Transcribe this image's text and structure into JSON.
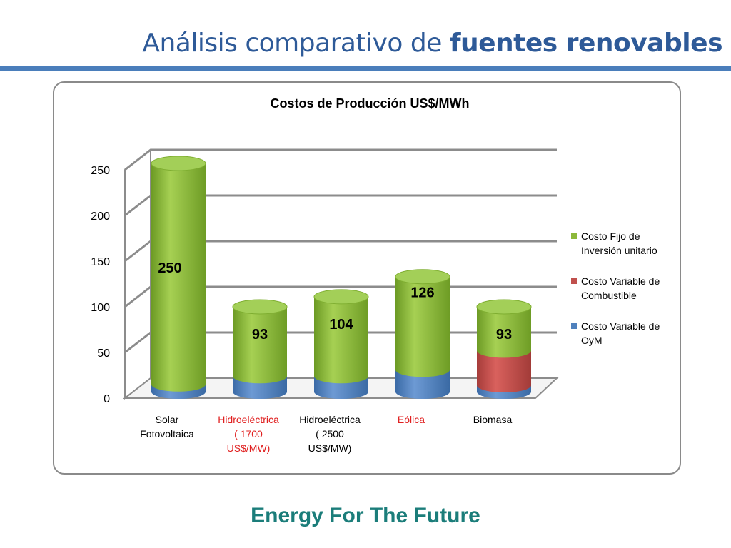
{
  "slide": {
    "title_regular": "Análisis comparativo de ",
    "title_bold": "fuentes renovables",
    "footer": "Energy For The Future"
  },
  "chart_data": {
    "type": "bar",
    "stacked": true,
    "three_d": true,
    "title": "Costos de Producción US$/MWh",
    "xlabel": "",
    "ylabel": "",
    "ylim": [
      0,
      250
    ],
    "yticks": [
      0,
      50,
      100,
      150,
      200,
      250
    ],
    "grid": true,
    "legend": "right",
    "categories": [
      {
        "lines": [
          "Solar",
          "Fotovoltaica"
        ],
        "color": "#000000"
      },
      {
        "lines": [
          "Hidroeléctrica",
          "( 1700",
          "US$/MW)"
        ],
        "color": "#e02020"
      },
      {
        "lines": [
          "Hidroeléctrica",
          "( 2500",
          "US$/MW)"
        ],
        "color": "#000000"
      },
      {
        "lines": [
          "Eólica"
        ],
        "color": "#e02020"
      },
      {
        "lines": [
          "Biomasa"
        ],
        "color": "#000000"
      }
    ],
    "series": [
      {
        "name": "Costo Variable de OyM",
        "color": "#4f81bd",
        "values": [
          8,
          17,
          17,
          24,
          7
        ]
      },
      {
        "name": "Costo Variable de Combustible",
        "color": "#c0504d",
        "values": [
          0,
          0,
          0,
          0,
          38
        ]
      },
      {
        "name": "Costo Fijo de Inversión unitario",
        "color": "#8cb83a",
        "values": [
          242,
          76,
          87,
          102,
          48
        ]
      }
    ],
    "legend_order": [
      2,
      1,
      0
    ],
    "totals": [
      "250",
      "93",
      "104",
      "126",
      "93"
    ]
  }
}
